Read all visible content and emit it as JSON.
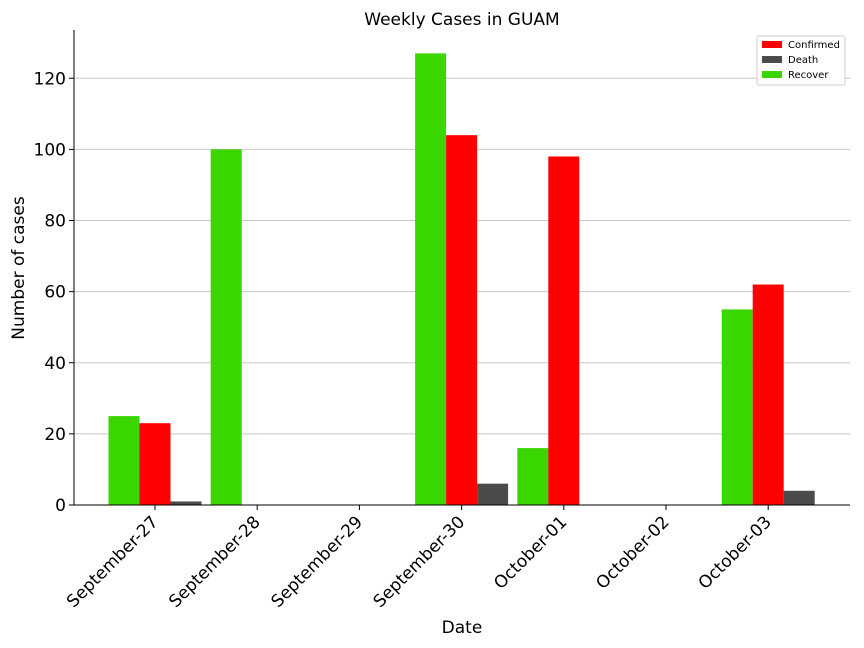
{
  "chart_data": {
    "type": "bar",
    "title": "Weekly Cases in GUAM",
    "xlabel": "Date",
    "ylabel": "Number of cases",
    "categories": [
      "September-27",
      "September-28",
      "September-29",
      "September-30",
      "October-01",
      "October-02",
      "October-03"
    ],
    "series": [
      {
        "name": "Recover",
        "color": "#3ad600",
        "values": [
          25,
          100,
          0,
          127,
          16,
          0,
          55
        ]
      },
      {
        "name": "Confirmed",
        "color": "#ff0000",
        "values": [
          23,
          0,
          0,
          104,
          98,
          0,
          62
        ]
      },
      {
        "name": "Death",
        "color": "#4b4b4b",
        "values": [
          1,
          0,
          0,
          6,
          0,
          0,
          4
        ]
      }
    ],
    "legend_order": [
      "Confirmed",
      "Death",
      "Recover"
    ],
    "ylim": [
      0,
      133
    ],
    "yticks": [
      0,
      20,
      40,
      60,
      80,
      100,
      120
    ],
    "grid": "horizontal",
    "legend_position": "top-right"
  }
}
